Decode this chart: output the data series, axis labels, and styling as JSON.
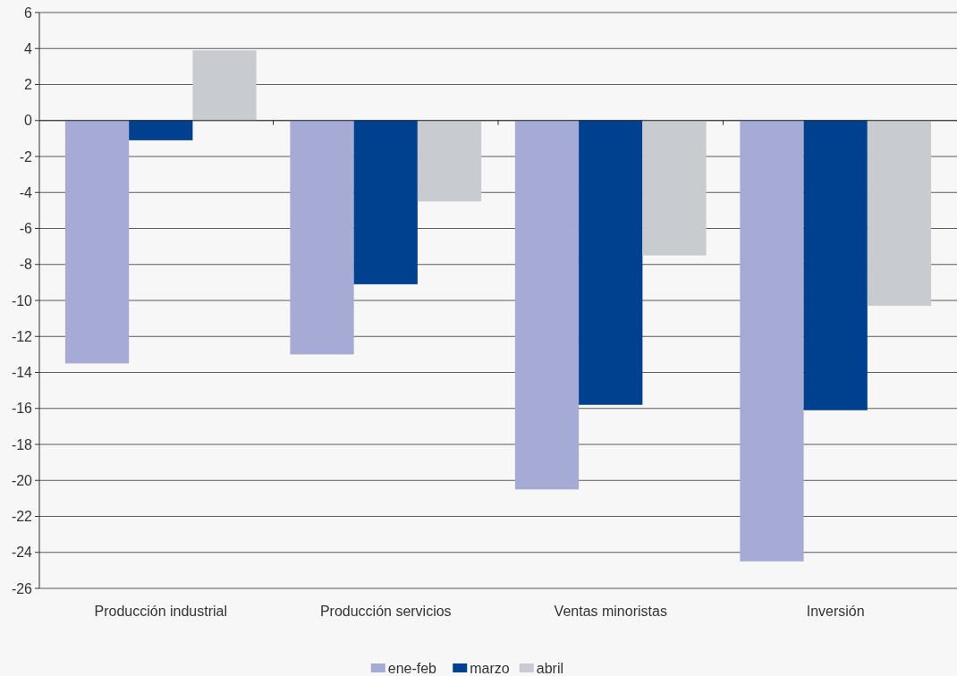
{
  "chart_data": {
    "type": "bar",
    "categories": [
      "Producción industrial",
      "Producción servicios",
      "Ventas minoristas",
      "Inversión"
    ],
    "series": [
      {
        "name": "ene-feb",
        "color": "#a5abd4",
        "values": [
          -13.5,
          -13,
          -20.5,
          -24.5
        ]
      },
      {
        "name": "marzo",
        "color": "#00418f",
        "values": [
          -1.1,
          -9.1,
          -15.8,
          -16.1
        ]
      },
      {
        "name": "abril",
        "color": "#c8ccd0",
        "values": [
          3.9,
          -4.5,
          -7.5,
          -10.3
        ]
      }
    ],
    "ylim": [
      -26,
      6
    ],
    "yticks": [
      -26,
      -24,
      -22,
      -20,
      -18,
      -16,
      -14,
      -12,
      -10,
      -8,
      -6,
      -4,
      -2,
      0,
      2,
      4,
      6
    ],
    "grid": "y",
    "legend": "bottom"
  }
}
